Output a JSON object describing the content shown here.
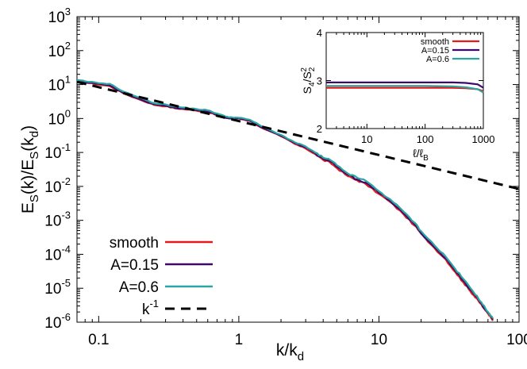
{
  "chart_data": [
    {
      "type": "line",
      "role": "main",
      "xscale": "log",
      "yscale": "log",
      "xlim": [
        0.07,
        100
      ],
      "ylim": [
        1e-06,
        1000
      ],
      "ylabel": {
        "base": "E",
        "sub1": "S",
        "mid": "(k)/E",
        "sub2": "S",
        "mid2": "(k",
        "sub3": "d",
        "end": ")"
      },
      "xlabel": {
        "base": "k/k",
        "sub": "d"
      },
      "xticks": [
        {
          "value": 0.1,
          "label": "0.1"
        },
        {
          "value": 1,
          "label": "1"
        },
        {
          "value": 10,
          "label": "10"
        },
        {
          "value": 100,
          "label": "100"
        }
      ],
      "yticks": [
        {
          "value": 1e-06,
          "base": "10",
          "exp": "-6"
        },
        {
          "value": 1e-05,
          "base": "10",
          "exp": "-5"
        },
        {
          "value": 0.0001,
          "base": "10",
          "exp": "-4"
        },
        {
          "value": 0.001,
          "base": "10",
          "exp": "-3"
        },
        {
          "value": 0.01,
          "base": "10",
          "exp": "-2"
        },
        {
          "value": 0.1,
          "base": "10",
          "exp": "-1"
        },
        {
          "value": 1,
          "base": "10",
          "exp": "0"
        },
        {
          "value": 10,
          "base": "10",
          "exp": "1"
        },
        {
          "value": 100,
          "base": "10",
          "exp": "2"
        },
        {
          "value": 1000,
          "base": "10",
          "exp": "3"
        }
      ],
      "legend_position": "bottom-left",
      "series": [
        {
          "name": "smooth",
          "color": "#e41a1c",
          "dash": false,
          "x": [
            0.07,
            0.08,
            0.1,
            0.12,
            0.15,
            0.2,
            0.25,
            0.3,
            0.35,
            0.4,
            0.5,
            0.6,
            0.7,
            0.8,
            0.9,
            1.0,
            1.2,
            1.5,
            2,
            2.5,
            3,
            3.5,
            4,
            4.5,
            5,
            6,
            7,
            8,
            10,
            12,
            15,
            18,
            20,
            25,
            30,
            35,
            40,
            45,
            50,
            55,
            60,
            65
          ],
          "y": [
            12.5,
            11.5,
            10,
            9,
            5.5,
            3.5,
            2.5,
            2.3,
            2.0,
            1.9,
            1.7,
            1.55,
            1.25,
            1.05,
            1.0,
            1.0,
            0.85,
            0.5,
            0.3,
            0.18,
            0.13,
            0.09,
            0.06,
            0.05,
            0.035,
            0.02,
            0.015,
            0.012,
            0.006,
            0.0035,
            0.0015,
            0.0007,
            0.0004,
            0.00015,
            7e-05,
            3e-05,
            1.5e-05,
            8e-06,
            5e-06,
            2.8e-06,
            1.8e-06,
            1.1e-06
          ]
        },
        {
          "name": "A=0.15",
          "color": "#3d0a6b",
          "dash": false,
          "x": [
            0.07,
            0.08,
            0.1,
            0.12,
            0.15,
            0.2,
            0.25,
            0.3,
            0.35,
            0.4,
            0.5,
            0.6,
            0.7,
            0.8,
            0.9,
            1.0,
            1.2,
            1.5,
            2,
            2.5,
            3,
            3.5,
            4,
            4.5,
            5,
            6,
            7,
            8,
            10,
            12,
            15,
            18,
            20,
            25,
            30,
            35,
            40,
            45,
            50,
            55,
            60,
            65
          ],
          "y": [
            12.8,
            11.8,
            10.5,
            9.5,
            5.7,
            3.6,
            2.6,
            2.4,
            2.05,
            1.95,
            1.75,
            1.6,
            1.3,
            1.05,
            1.0,
            1.0,
            0.87,
            0.52,
            0.31,
            0.19,
            0.14,
            0.095,
            0.065,
            0.055,
            0.038,
            0.022,
            0.016,
            0.013,
            0.0065,
            0.0038,
            0.0016,
            0.00075,
            0.00042,
            0.00016,
            7.5e-05,
            3.3e-05,
            1.7e-05,
            9e-06,
            5.5e-06,
            3e-06,
            1.9e-06,
            1.2e-06
          ]
        },
        {
          "name": "A=0.6",
          "color": "#2ba5a1",
          "dash": false,
          "x": [
            0.07,
            0.08,
            0.1,
            0.12,
            0.15,
            0.2,
            0.25,
            0.3,
            0.35,
            0.4,
            0.5,
            0.6,
            0.7,
            0.8,
            0.9,
            1.0,
            1.2,
            1.5,
            2,
            2.5,
            3,
            3.5,
            4,
            4.5,
            5,
            6,
            7,
            8,
            10,
            12,
            15,
            18,
            20,
            25,
            30,
            35,
            40,
            45,
            50,
            55,
            60,
            65
          ],
          "y": [
            13.5,
            12.5,
            11,
            10.5,
            6.2,
            4.0,
            2.8,
            2.6,
            2.25,
            2.1,
            1.9,
            1.75,
            1.4,
            1.15,
            1.08,
            1.05,
            0.92,
            0.55,
            0.33,
            0.2,
            0.15,
            0.1,
            0.07,
            0.06,
            0.042,
            0.024,
            0.018,
            0.015,
            0.0072,
            0.0042,
            0.0018,
            0.00085,
            0.00048,
            0.00018,
            8.5e-05,
            3.7e-05,
            1.9e-05,
            1e-05,
            6e-06,
            3.3e-06,
            2e-06,
            1.3e-06
          ]
        },
        {
          "name": "k",
          "sup": "-1",
          "color": "#000000",
          "dash": true,
          "x": [
            0.07,
            100
          ],
          "y": [
            12.0,
            0.0084
          ]
        }
      ]
    },
    {
      "type": "line",
      "role": "inset",
      "xscale": "log",
      "yscale": "linear",
      "xlim": [
        2,
        1000
      ],
      "ylim": [
        2,
        4
      ],
      "ylabel": {
        "s1": "S",
        "sub1": "4",
        "slash": "/S",
        "sub2": "2",
        "sup2": "2"
      },
      "xlabel": {
        "l1": "ℓ/ℓ",
        "sub": "B"
      },
      "xticks": [
        {
          "value": 10,
          "label": "10"
        },
        {
          "value": 100,
          "label": "100"
        },
        {
          "value": 1000,
          "label": "1000"
        }
      ],
      "yticks": [
        {
          "value": 2,
          "label": "2"
        },
        {
          "value": 3,
          "label": "3"
        },
        {
          "value": 4,
          "label": "4"
        }
      ],
      "legend_position": "top-right",
      "series": [
        {
          "name": "smooth",
          "color": "#e41a1c",
          "x": [
            2,
            10,
            50,
            100,
            300,
            500,
            800,
            1000
          ],
          "y": [
            2.85,
            2.85,
            2.85,
            2.85,
            2.85,
            2.84,
            2.82,
            2.78
          ]
        },
        {
          "name": "A=0.15",
          "color": "#3d0a6b",
          "x": [
            2,
            10,
            50,
            100,
            300,
            500,
            800,
            1000
          ],
          "y": [
            2.96,
            2.96,
            2.96,
            2.96,
            2.96,
            2.95,
            2.92,
            2.85
          ]
        },
        {
          "name": "A=0.6",
          "color": "#2ba5a1",
          "x": [
            2,
            10,
            50,
            100,
            300,
            500,
            800,
            1000
          ],
          "y": [
            2.89,
            2.89,
            2.89,
            2.89,
            2.88,
            2.86,
            2.82,
            2.75
          ]
        }
      ]
    }
  ]
}
